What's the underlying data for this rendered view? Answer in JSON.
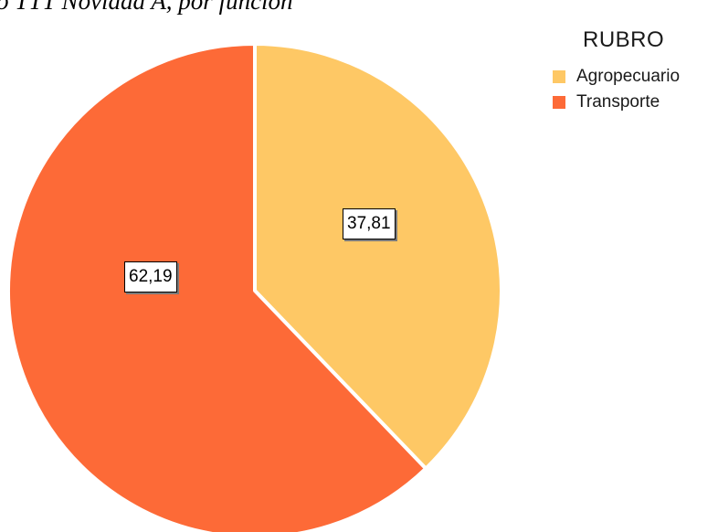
{
  "page": {
    "title": "o TTT Novidad A, por función"
  },
  "colors": {
    "Agropecuario": "#fec865",
    "Transporte": "#fd6a37"
  },
  "chart_data": {
    "type": "pie",
    "title": "",
    "labels": [
      "Agropecuario",
      "Transporte"
    ],
    "values": [
      37.81,
      62.19
    ],
    "value_labels": [
      "37,81",
      "62,19"
    ],
    "legend": {
      "title": "RUBRO",
      "position": "top-right"
    }
  }
}
